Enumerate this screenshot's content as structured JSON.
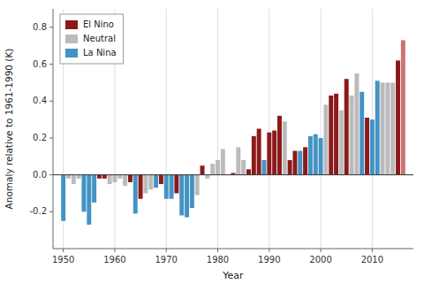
{
  "chart_data": {
    "type": "bar",
    "xlabel": "Year",
    "ylabel": "Anomaly relative to 1961-1990 (K)",
    "x": [
      1950,
      1951,
      1952,
      1953,
      1954,
      1955,
      1956,
      1957,
      1958,
      1959,
      1960,
      1961,
      1962,
      1963,
      1964,
      1965,
      1966,
      1967,
      1968,
      1969,
      1970,
      1971,
      1972,
      1973,
      1974,
      1975,
      1976,
      1977,
      1978,
      1979,
      1980,
      1981,
      1982,
      1983,
      1984,
      1985,
      1986,
      1987,
      1988,
      1989,
      1990,
      1991,
      1992,
      1993,
      1994,
      1995,
      1996,
      1997,
      1998,
      1999,
      2000,
      2001,
      2002,
      2003,
      2004,
      2005,
      2006,
      2007,
      2008,
      2009,
      2010,
      2011,
      2012,
      2013,
      2014,
      2015,
      2016
    ],
    "series": [
      {
        "name": "El Nino",
        "color": "#8B1A1A",
        "values": [
          null,
          null,
          null,
          null,
          null,
          null,
          null,
          -0.02,
          -0.02,
          null,
          null,
          null,
          null,
          -0.04,
          null,
          -0.13,
          null,
          null,
          null,
          -0.05,
          null,
          null,
          -0.1,
          null,
          null,
          null,
          null,
          0.05,
          null,
          null,
          null,
          null,
          0.0,
          0.01,
          null,
          null,
          0.03,
          0.21,
          0.25,
          null,
          0.23,
          0.24,
          0.32,
          null,
          0.08,
          0.13,
          null,
          0.15,
          null,
          null,
          null,
          null,
          0.43,
          0.44,
          null,
          0.52,
          null,
          null,
          null,
          0.31,
          null,
          null,
          null,
          null,
          null,
          0.62,
          0.73
        ],
        "colors": [
          null,
          null,
          null,
          null,
          null,
          null,
          null,
          "#8B1A1A",
          "#8B1A1A",
          null,
          null,
          null,
          null,
          "#8B1A1A",
          null,
          "#8B1A1A",
          null,
          null,
          null,
          "#8B1A1A",
          null,
          null,
          "#8B1A1A",
          null,
          null,
          null,
          null,
          "#8B1A1A",
          null,
          null,
          null,
          null,
          "#8B1A1A",
          "#8B1A1A",
          null,
          null,
          "#8B1A1A",
          "#8B1A1A",
          "#8B1A1A",
          null,
          "#8B1A1A",
          "#8B1A1A",
          "#8B1A1A",
          null,
          "#8B1A1A",
          "#8B1A1A",
          null,
          "#8B1A1A",
          null,
          null,
          null,
          null,
          "#8B1A1A",
          "#8B1A1A",
          null,
          "#8B1A1A",
          null,
          null,
          null,
          "#8B1A1A",
          null,
          null,
          null,
          null,
          null,
          "#8B1A1A",
          "#D07070"
        ]
      },
      {
        "name": "Neutral",
        "color": "#BBBBBB",
        "values": [
          null,
          -0.02,
          -0.05,
          -0.02,
          null,
          null,
          null,
          null,
          null,
          -0.05,
          -0.04,
          -0.02,
          -0.06,
          null,
          null,
          null,
          -0.1,
          -0.08,
          null,
          null,
          null,
          null,
          null,
          null,
          null,
          null,
          -0.11,
          null,
          -0.02,
          0.06,
          0.08,
          0.14,
          null,
          null,
          0.15,
          0.08,
          null,
          null,
          null,
          null,
          null,
          null,
          null,
          0.29,
          null,
          null,
          null,
          null,
          null,
          null,
          null,
          0.38,
          null,
          null,
          0.35,
          null,
          0.43,
          0.55,
          null,
          null,
          null,
          null,
          0.5,
          0.5,
          0.5,
          null,
          null
        ]
      },
      {
        "name": "La Nina",
        "color": "#4393C3",
        "values": [
          -0.25,
          null,
          null,
          null,
          -0.2,
          -0.27,
          -0.15,
          null,
          null,
          null,
          null,
          null,
          null,
          null,
          -0.21,
          null,
          null,
          null,
          -0.07,
          null,
          -0.13,
          -0.13,
          null,
          -0.22,
          -0.23,
          -0.18,
          null,
          null,
          null,
          null,
          null,
          null,
          null,
          null,
          null,
          null,
          null,
          null,
          null,
          0.08,
          null,
          null,
          null,
          null,
          null,
          null,
          0.13,
          null,
          0.21,
          0.22,
          0.2,
          null,
          null,
          null,
          null,
          null,
          null,
          null,
          0.45,
          null,
          0.3,
          0.51,
          null,
          null,
          null,
          null,
          null
        ]
      }
    ],
    "xlim": [
      1948,
      2018
    ],
    "xticks": [
      1950,
      1960,
      1970,
      1980,
      1990,
      2000,
      2010
    ],
    "ylim": [
      -0.4,
      0.9
    ],
    "yticks": [
      -0.2,
      {
        "value": 0.0,
        "label": "0.0"
      },
      0.2,
      0.4,
      0.6,
      0.8
    ],
    "grid": true,
    "legend": "upper left"
  }
}
